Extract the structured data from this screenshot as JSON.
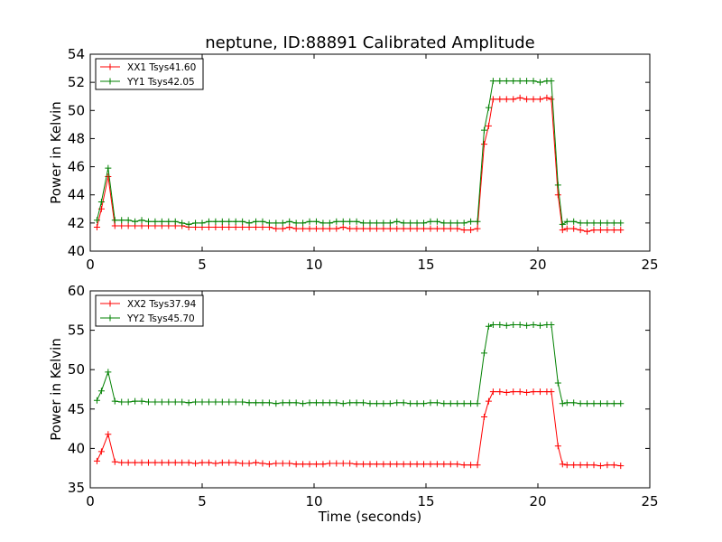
{
  "chart_data": [
    {
      "type": "line",
      "title": "neptune, ID:88891 Calibrated Amplitude",
      "xlabel": "",
      "ylabel": "Power in Kelvin",
      "xlim": [
        0,
        25
      ],
      "ylim": [
        40,
        54
      ],
      "xticks": [
        0,
        5,
        10,
        15,
        20,
        25
      ],
      "yticks": [
        40,
        42,
        44,
        46,
        48,
        50,
        52,
        54
      ],
      "grid": false,
      "legend_position": "top-left",
      "markers": "plus",
      "series": [
        {
          "name": "XX1 Tsys41.60",
          "color": "#ff0000",
          "x": [
            0.3,
            0.5,
            0.8,
            1.1,
            1.4,
            1.7,
            2.0,
            2.3,
            2.6,
            2.9,
            3.2,
            3.5,
            3.8,
            4.1,
            4.4,
            4.7,
            5.0,
            5.3,
            5.6,
            5.9,
            6.2,
            6.5,
            6.8,
            7.1,
            7.4,
            7.7,
            8.0,
            8.3,
            8.6,
            8.9,
            9.2,
            9.5,
            9.8,
            10.1,
            10.4,
            10.7,
            11.0,
            11.3,
            11.6,
            11.9,
            12.2,
            12.5,
            12.8,
            13.1,
            13.4,
            13.7,
            14.0,
            14.3,
            14.6,
            14.9,
            15.2,
            15.5,
            15.8,
            16.1,
            16.4,
            16.7,
            17.0,
            17.3,
            17.6,
            17.8,
            18.0,
            18.3,
            18.6,
            18.9,
            19.2,
            19.5,
            19.8,
            20.1,
            20.4,
            20.6,
            20.9,
            21.1,
            21.3,
            21.6,
            21.9,
            22.2,
            22.5,
            22.8,
            23.1,
            23.4,
            23.7
          ],
          "y": [
            41.7,
            43.0,
            45.3,
            41.8,
            41.8,
            41.8,
            41.8,
            41.8,
            41.8,
            41.8,
            41.8,
            41.8,
            41.8,
            41.8,
            41.7,
            41.7,
            41.7,
            41.7,
            41.7,
            41.7,
            41.7,
            41.7,
            41.7,
            41.7,
            41.7,
            41.7,
            41.7,
            41.6,
            41.6,
            41.7,
            41.6,
            41.6,
            41.6,
            41.6,
            41.6,
            41.6,
            41.6,
            41.7,
            41.6,
            41.6,
            41.6,
            41.6,
            41.6,
            41.6,
            41.6,
            41.6,
            41.6,
            41.6,
            41.6,
            41.6,
            41.6,
            41.6,
            41.6,
            41.6,
            41.6,
            41.5,
            41.5,
            41.6,
            47.6,
            48.9,
            50.8,
            50.8,
            50.8,
            50.8,
            50.9,
            50.8,
            50.8,
            50.8,
            50.9,
            50.8,
            44.0,
            41.5,
            41.6,
            41.6,
            41.5,
            41.4,
            41.5,
            41.5,
            41.5,
            41.5,
            41.5
          ]
        },
        {
          "name": "YY1 Tsys42.05",
          "color": "#008000",
          "x": [
            0.3,
            0.5,
            0.8,
            1.1,
            1.4,
            1.7,
            2.0,
            2.3,
            2.6,
            2.9,
            3.2,
            3.5,
            3.8,
            4.1,
            4.4,
            4.7,
            5.0,
            5.3,
            5.6,
            5.9,
            6.2,
            6.5,
            6.8,
            7.1,
            7.4,
            7.7,
            8.0,
            8.3,
            8.6,
            8.9,
            9.2,
            9.5,
            9.8,
            10.1,
            10.4,
            10.7,
            11.0,
            11.3,
            11.6,
            11.9,
            12.2,
            12.5,
            12.8,
            13.1,
            13.4,
            13.7,
            14.0,
            14.3,
            14.6,
            14.9,
            15.2,
            15.5,
            15.8,
            16.1,
            16.4,
            16.7,
            17.0,
            17.3,
            17.6,
            17.8,
            18.0,
            18.3,
            18.6,
            18.9,
            19.2,
            19.5,
            19.8,
            20.1,
            20.4,
            20.6,
            20.9,
            21.1,
            21.3,
            21.6,
            21.9,
            22.2,
            22.5,
            22.8,
            23.1,
            23.4,
            23.7
          ],
          "y": [
            42.2,
            43.5,
            45.9,
            42.2,
            42.2,
            42.2,
            42.1,
            42.2,
            42.1,
            42.1,
            42.1,
            42.1,
            42.1,
            42.0,
            41.9,
            42.0,
            42.0,
            42.1,
            42.1,
            42.1,
            42.1,
            42.1,
            42.1,
            42.0,
            42.1,
            42.1,
            42.0,
            42.0,
            42.0,
            42.1,
            42.0,
            42.0,
            42.1,
            42.1,
            42.0,
            42.0,
            42.1,
            42.1,
            42.1,
            42.1,
            42.0,
            42.0,
            42.0,
            42.0,
            42.0,
            42.1,
            42.0,
            42.0,
            42.0,
            42.0,
            42.1,
            42.1,
            42.0,
            42.0,
            42.0,
            42.0,
            42.1,
            42.1,
            48.6,
            50.2,
            52.1,
            52.1,
            52.1,
            52.1,
            52.1,
            52.1,
            52.1,
            52.0,
            52.1,
            52.1,
            44.7,
            41.9,
            42.1,
            42.1,
            42.0,
            42.0,
            42.0,
            42.0,
            42.0,
            42.0,
            42.0
          ]
        }
      ]
    },
    {
      "type": "line",
      "title": "",
      "xlabel": "Time (seconds)",
      "ylabel": "Power in Kelvin",
      "xlim": [
        0,
        25
      ],
      "ylim": [
        35,
        60
      ],
      "xticks": [
        0,
        5,
        10,
        15,
        20,
        25
      ],
      "yticks": [
        35,
        40,
        45,
        50,
        55,
        60
      ],
      "grid": false,
      "legend_position": "top-left",
      "markers": "plus",
      "series": [
        {
          "name": "XX2 Tsys37.94",
          "color": "#ff0000",
          "x": [
            0.3,
            0.5,
            0.8,
            1.1,
            1.4,
            1.7,
            2.0,
            2.3,
            2.6,
            2.9,
            3.2,
            3.5,
            3.8,
            4.1,
            4.4,
            4.7,
            5.0,
            5.3,
            5.6,
            5.9,
            6.2,
            6.5,
            6.8,
            7.1,
            7.4,
            7.7,
            8.0,
            8.3,
            8.6,
            8.9,
            9.2,
            9.5,
            9.8,
            10.1,
            10.4,
            10.7,
            11.0,
            11.3,
            11.6,
            11.9,
            12.2,
            12.5,
            12.8,
            13.1,
            13.4,
            13.7,
            14.0,
            14.3,
            14.6,
            14.9,
            15.2,
            15.5,
            15.8,
            16.1,
            16.4,
            16.7,
            17.0,
            17.3,
            17.6,
            17.8,
            18.0,
            18.3,
            18.6,
            18.9,
            19.2,
            19.5,
            19.8,
            20.1,
            20.4,
            20.6,
            20.9,
            21.1,
            21.3,
            21.6,
            21.9,
            22.2,
            22.5,
            22.8,
            23.1,
            23.4,
            23.7
          ],
          "y": [
            38.4,
            39.6,
            41.8,
            38.3,
            38.2,
            38.2,
            38.2,
            38.2,
            38.2,
            38.2,
            38.2,
            38.2,
            38.2,
            38.2,
            38.2,
            38.1,
            38.2,
            38.2,
            38.1,
            38.2,
            38.2,
            38.2,
            38.1,
            38.1,
            38.2,
            38.1,
            38.0,
            38.1,
            38.1,
            38.1,
            38.0,
            38.0,
            38.0,
            38.0,
            38.0,
            38.1,
            38.1,
            38.1,
            38.1,
            38.0,
            38.0,
            38.0,
            38.0,
            38.0,
            38.0,
            38.0,
            38.0,
            38.0,
            38.0,
            38.0,
            38.0,
            38.0,
            38.0,
            38.0,
            38.0,
            37.9,
            37.9,
            37.9,
            44.0,
            46.0,
            47.2,
            47.2,
            47.1,
            47.2,
            47.2,
            47.1,
            47.2,
            47.2,
            47.2,
            47.2,
            40.3,
            38.0,
            37.9,
            37.9,
            37.9,
            37.9,
            37.9,
            37.8,
            37.9,
            37.9,
            37.8
          ]
        },
        {
          "name": "YY2 Tsys45.70",
          "color": "#008000",
          "x": [
            0.3,
            0.5,
            0.8,
            1.1,
            1.4,
            1.7,
            2.0,
            2.3,
            2.6,
            2.9,
            3.2,
            3.5,
            3.8,
            4.1,
            4.4,
            4.7,
            5.0,
            5.3,
            5.6,
            5.9,
            6.2,
            6.5,
            6.8,
            7.1,
            7.4,
            7.7,
            8.0,
            8.3,
            8.6,
            8.9,
            9.2,
            9.5,
            9.8,
            10.1,
            10.4,
            10.7,
            11.0,
            11.3,
            11.6,
            11.9,
            12.2,
            12.5,
            12.8,
            13.1,
            13.4,
            13.7,
            14.0,
            14.3,
            14.6,
            14.9,
            15.2,
            15.5,
            15.8,
            16.1,
            16.4,
            16.7,
            17.0,
            17.3,
            17.6,
            17.8,
            18.0,
            18.3,
            18.6,
            18.9,
            19.2,
            19.5,
            19.8,
            20.1,
            20.4,
            20.6,
            20.9,
            21.1,
            21.3,
            21.6,
            21.9,
            22.2,
            22.5,
            22.8,
            23.1,
            23.4,
            23.7
          ],
          "y": [
            46.1,
            47.3,
            49.7,
            46.0,
            45.9,
            45.9,
            46.0,
            46.0,
            45.9,
            45.9,
            45.9,
            45.9,
            45.9,
            45.9,
            45.8,
            45.9,
            45.9,
            45.9,
            45.9,
            45.9,
            45.9,
            45.9,
            45.9,
            45.8,
            45.8,
            45.8,
            45.8,
            45.7,
            45.8,
            45.8,
            45.8,
            45.7,
            45.8,
            45.8,
            45.8,
            45.8,
            45.8,
            45.7,
            45.8,
            45.8,
            45.8,
            45.7,
            45.7,
            45.7,
            45.7,
            45.8,
            45.8,
            45.7,
            45.7,
            45.7,
            45.8,
            45.8,
            45.7,
            45.7,
            45.7,
            45.7,
            45.7,
            45.7,
            52.1,
            55.5,
            55.7,
            55.7,
            55.6,
            55.7,
            55.7,
            55.6,
            55.7,
            55.6,
            55.7,
            55.7,
            48.3,
            45.7,
            45.8,
            45.8,
            45.7,
            45.7,
            45.7,
            45.7,
            45.7,
            45.7,
            45.7
          ]
        }
      ]
    }
  ]
}
